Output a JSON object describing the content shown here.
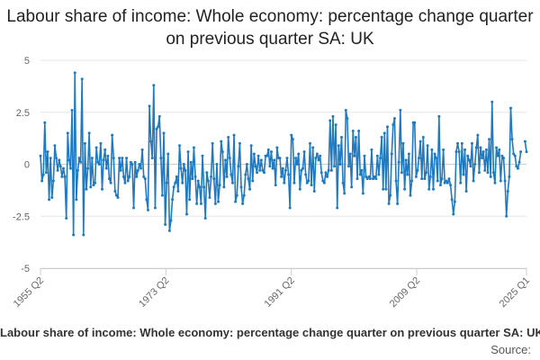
{
  "chart_data": {
    "type": "line",
    "title": "Labour share of income: Whole economy: percentage change quarter on previous quarter SA: UK",
    "xlabel": "",
    "ylabel": "",
    "x_ticks": [
      "1955 Q2",
      "1973 Q2",
      "1991 Q2",
      "2009 Q2",
      "2025 Q1"
    ],
    "y_ticks": [
      "5",
      "2.5",
      "0",
      "-2.5",
      "-5"
    ],
    "ylim": [
      -5,
      5
    ],
    "x_start": "1955 Q2",
    "x_end": "2025 Q1",
    "grid": "horizontal",
    "legend": "none",
    "series": [
      {
        "color": "#1f7ac0",
        "values": [
          0.4,
          -0.8,
          -0.5,
          2.0,
          -0.4,
          0.6,
          -1.7,
          0.3,
          -1.6,
          -0.8,
          0.9,
          0.3,
          -0.3,
          0.2,
          -0.1,
          -0.6,
          -0.2,
          -0.6,
          -2.6,
          1.5,
          0.2,
          -0.2,
          2.6,
          -3.4,
          4.4,
          -1.7,
          -0.3,
          0.3,
          0.1,
          4.1,
          -3.4,
          1.0,
          -1.2,
          -0.2,
          1.5,
          -1.1,
          0.3,
          -1.0,
          -0.9,
          0.8,
          0.1,
          0.0,
          1.0,
          -1.2,
          0.2,
          0.7,
          -0.2,
          0.4,
          -0.7,
          -0.9,
          1.4,
          0.3,
          -1.3,
          -1.5,
          -1.6,
          0.3,
          -0.3,
          0.3,
          -0.6,
          -0.9,
          0.3,
          -0.8,
          -0.6,
          0.1,
          0.0,
          -2.1,
          0.1,
          -0.6,
          -0.3,
          0.0,
          -0.2,
          0.7,
          -0.6,
          -0.7,
          -1.7,
          -2.2,
          2.8,
          1.1,
          0.3,
          3.8,
          -2.1,
          1.7,
          1.8,
          2.3,
          0.3,
          -1.5,
          1.5,
          -2.9,
          -0.9,
          0.5,
          -3.2,
          -2.7,
          -1.7,
          -1.1,
          -0.9,
          -0.6,
          -1.3,
          0.9,
          -0.2,
          -0.9,
          0.0,
          -0.3,
          -2.4,
          0.6,
          -1.7,
          0.1,
          -0.7,
          0.8,
          -0.6,
          -1.9,
          -0.8,
          -1.1,
          -1.9,
          0.4,
          -1.1,
          -2.6,
          -0.4,
          -0.8,
          -1.6,
          -0.6,
          1.0,
          -0.7,
          -1.9,
          0.0,
          -1.8,
          -1.0,
          1.1,
          0.6,
          -1.1,
          0.2,
          -0.6,
          1.3,
          0.3,
          -0.5,
          -0.9,
          1.4,
          -1.8,
          -1.5,
          -0.1,
          1.0,
          -1.1,
          -1.9,
          -1.5,
          -0.5,
          0.0,
          -0.7,
          -1.2,
          0.9,
          -0.8,
          0.5,
          -0.1,
          -0.4,
          0.4,
          -0.3,
          0.2,
          -0.3,
          -0.4,
          0.4,
          0.4,
          0.7,
          -0.1,
          0.6,
          -0.2,
          0.2,
          -1.0,
          0.8,
          0.3,
          0.3,
          -0.6,
          -0.2,
          -0.9,
          -0.3,
          0.3,
          -0.5,
          -2.1,
          1.4,
          1.2,
          -0.9,
          0.3,
          0.0,
          0.5,
          -1.2,
          -0.3,
          -0.2,
          0.6,
          -0.5,
          -0.9,
          -0.8,
          1.0,
          -1.0,
          0.8,
          -1.3,
          0.3,
          0.5,
          0.2,
          0.4,
          -0.4,
          -0.8,
          -0.9,
          -0.4,
          -0.6,
          -0.3,
          2.1,
          -0.3,
          2.3,
          -0.1,
          1.9,
          -2.1,
          0.9,
          0.0,
          1.3,
          -0.9,
          -1.4,
          2.6,
          2.2,
          -0.1,
          0.5,
          -1.1,
          1.6,
          0.4,
          1.3,
          -0.7,
          1.6,
          -0.5,
          -0.3,
          -1.4,
          0.4,
          -0.6,
          -0.7,
          -0.6,
          -0.7,
          0.7,
          -0.7,
          -0.6,
          -0.7,
          0.4,
          -0.5,
          0.3,
          1.3,
          -1.2,
          1.5,
          -1.2,
          1.8,
          -1.9,
          -1.5,
          0.5,
          1.9,
          2.2,
          -0.8,
          -1.9,
          0.1,
          2.6,
          -0.4,
          1.0,
          -1.2,
          0.2,
          -0.5,
          0.5,
          -1.5,
          -0.8,
          2.0,
          2.0,
          -0.6,
          -0.3,
          0.3,
          1.1,
          -0.7,
          1.3,
          -0.7,
          -0.4,
          0.9,
          -1.2,
          -0.6,
          0.7,
          -1.2,
          0.5,
          0.3,
          -0.8,
          2.3,
          -1.0,
          -0.7,
          0.7,
          -0.9,
          -0.8,
          -0.9,
          -0.7,
          -1.0,
          -1.7,
          -2.4,
          -1.8,
          0.6,
          1.0,
          0.6,
          -0.9,
          1.0,
          -0.5,
          0.7,
          -1.3,
          0.4,
          0.2,
          -0.1,
          1.0,
          -0.8,
          0.0,
          0.8,
          1.4,
          -0.4,
          0.8,
          0.3,
          0.6,
          -0.3,
          0.7,
          -0.4,
          1.2,
          -0.6,
          3.0,
          -0.4,
          -0.9,
          0.8,
          0.4,
          0.7,
          -0.8,
          0.4,
          0.3,
          -0.8,
          -2.5,
          -1.3,
          -0.6,
          2.7,
          1.2,
          0.5,
          0.4,
          -0.1,
          -0.2,
          0.1,
          0.6,
          null,
          null,
          1.1,
          0.6
        ]
      }
    ]
  },
  "caption": {
    "title": "Labour share of income: Whole economy: percentage change quarter on previous quarter SA: UK",
    "source": "Source:"
  }
}
